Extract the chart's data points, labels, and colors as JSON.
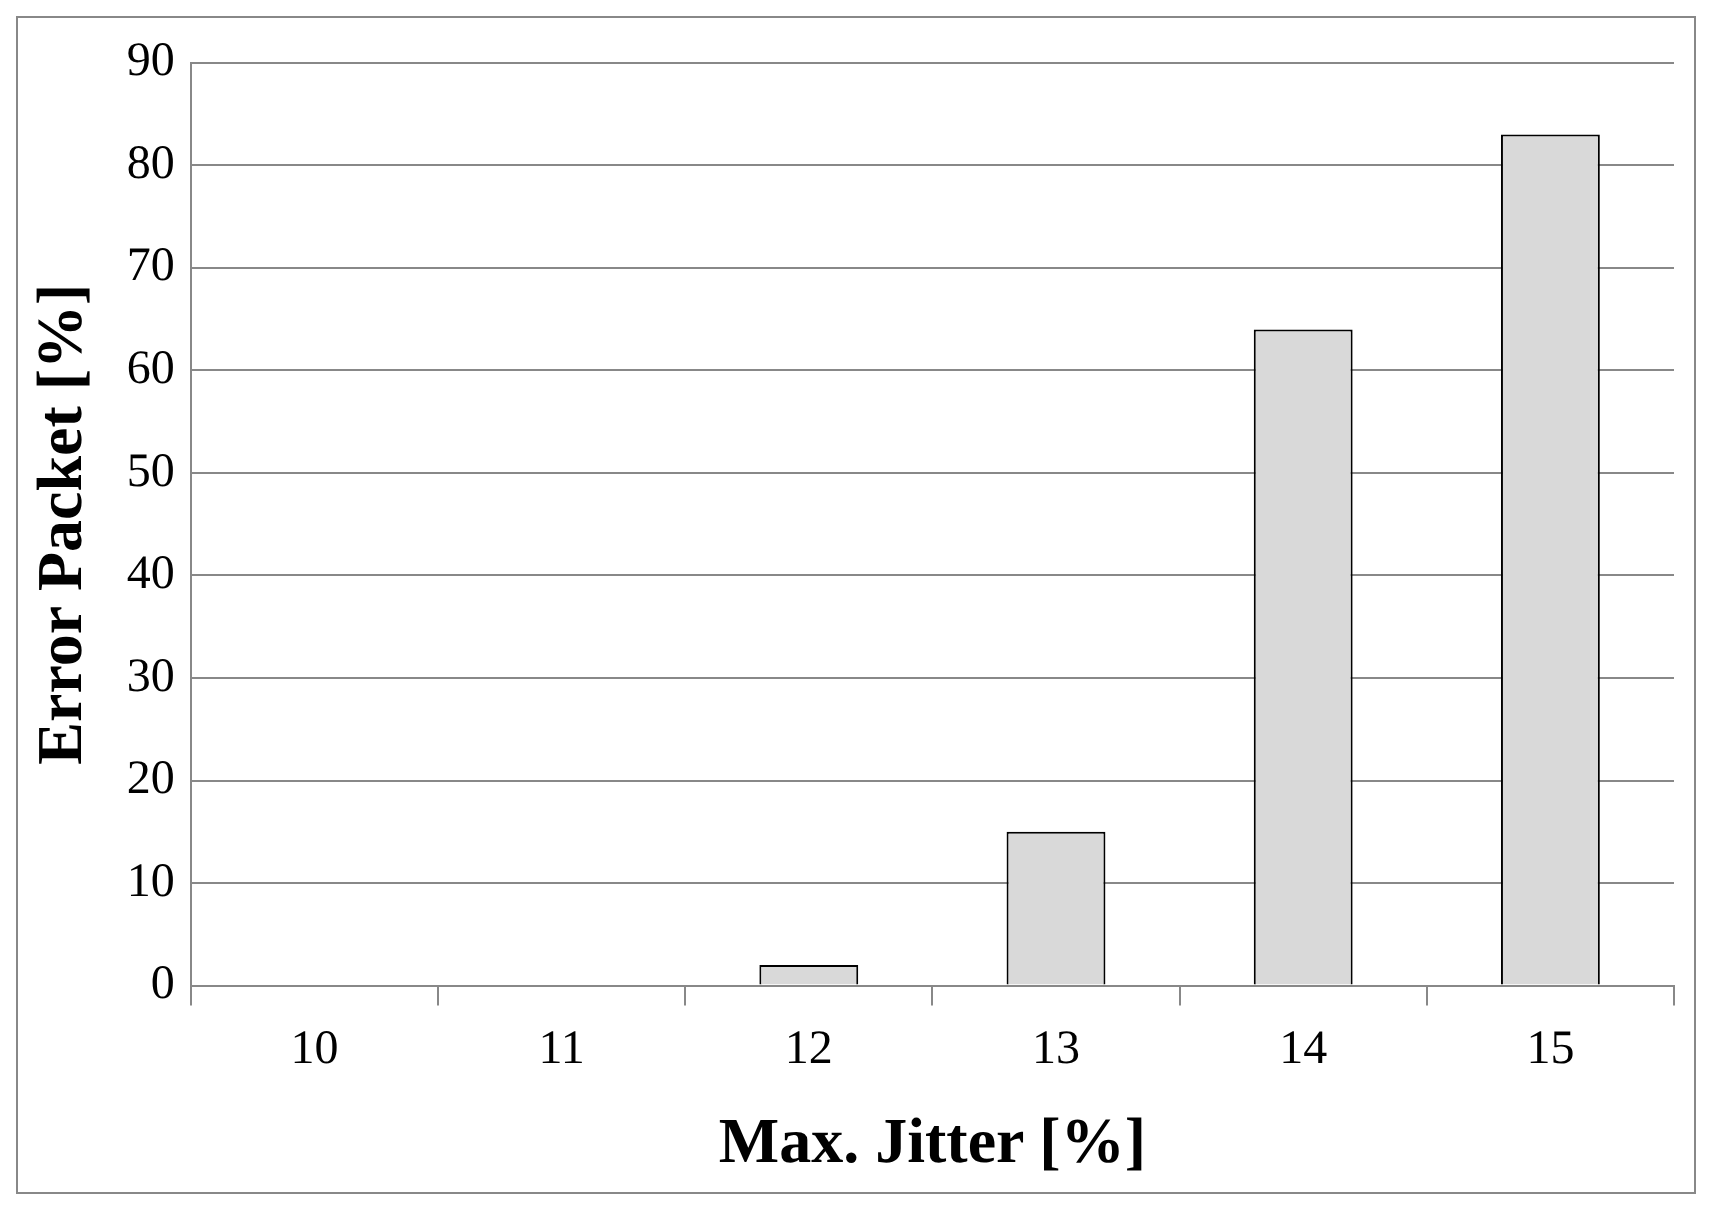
{
  "chart_data": {
    "type": "bar",
    "xlabel": "Max. Jitter [%]",
    "ylabel": "Error Packet [%]",
    "categories": [
      "10",
      "11",
      "12",
      "13",
      "14",
      "15"
    ],
    "values": [
      0,
      0,
      2,
      15,
      64,
      83
    ],
    "color": "#d9d9d9",
    "ylim": [
      0,
      90
    ],
    "yticks": [
      0,
      10,
      20,
      30,
      40,
      50,
      60,
      70,
      80,
      90
    ],
    "grid": "y",
    "legend": false
  }
}
